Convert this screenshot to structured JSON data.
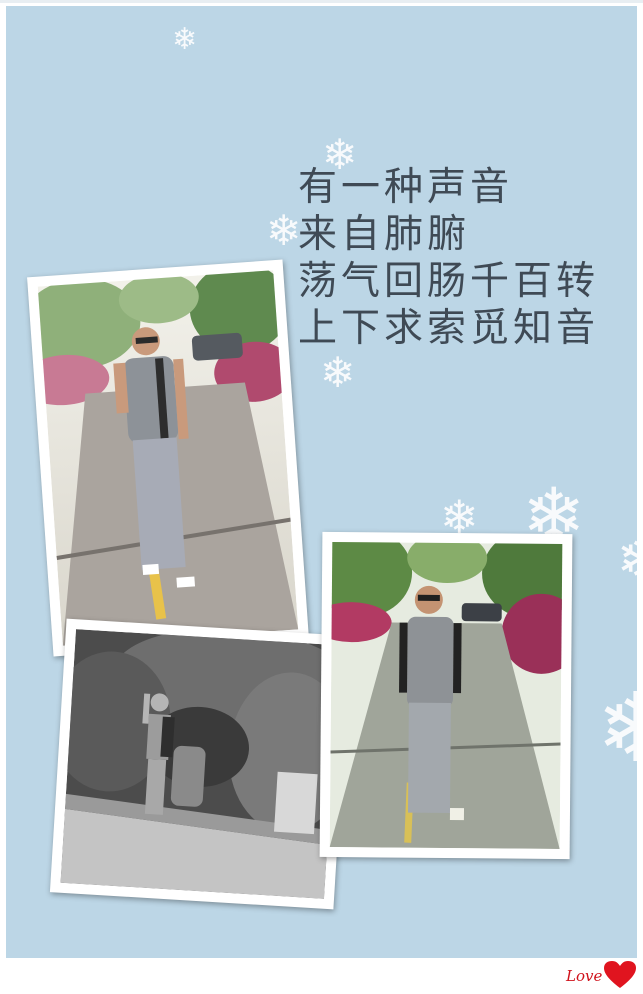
{
  "poem": {
    "line1": "有一种声音",
    "line2": "来自肺腑",
    "line3": "荡气回肠千百转",
    "line4": "上下求索觅知音"
  },
  "signature": {
    "text": "Love"
  },
  "photos": [
    {
      "label": "",
      "style": "color",
      "subject": "man-walking-finger-to-lips"
    },
    {
      "label": "",
      "style": "grayscale",
      "subject": "man-by-rockery"
    },
    {
      "label": "",
      "style": "color",
      "subject": "man-walking-on-path"
    }
  ],
  "colors": {
    "background": "#bcd6e6",
    "text": "#3f4a55",
    "heart": "#e0141f"
  },
  "icons": [
    "snowflake-icon",
    "heart-icon"
  ]
}
